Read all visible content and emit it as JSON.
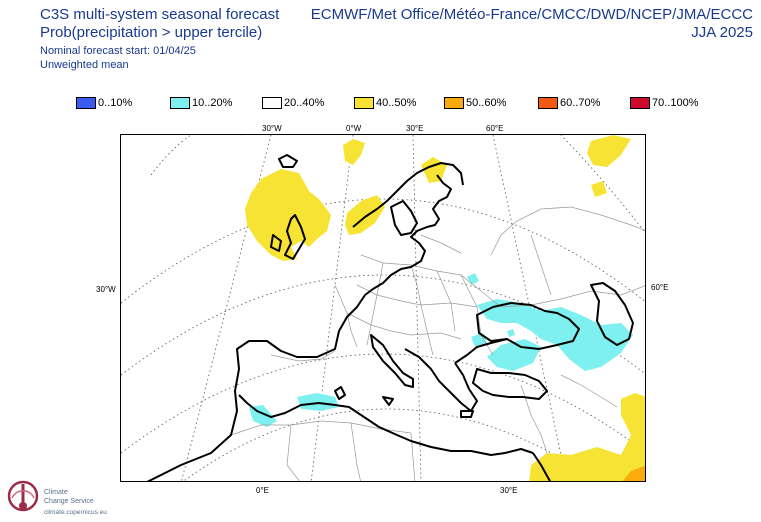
{
  "header": {
    "title": "C3S multi-system seasonal forecast",
    "subtitle": "Prob(precipitation > upper tercile)",
    "start": "Nominal forecast start: 01/04/25",
    "mean": "Unweighted mean",
    "centres": "ECMWF/Met Office/Météo-France/CMCC/DWD/NCEP/JMA/ECCC",
    "season": "JJA 2025"
  },
  "legend": [
    {
      "label": "0..10%",
      "color": "#3c5cf0"
    },
    {
      "label": "10..20%",
      "color": "#7ff0f0"
    },
    {
      "label": "20..40%",
      "color": "#ffffff"
    },
    {
      "label": "40..50%",
      "color": "#f7e333"
    },
    {
      "label": "50..60%",
      "color": "#fbab0e"
    },
    {
      "label": "60..70%",
      "color": "#f25a14"
    },
    {
      "label": "70..100%",
      "color": "#cc0a2e"
    }
  ],
  "axes": {
    "top": [
      "30°W",
      "0°W",
      "30°E",
      "60°E"
    ],
    "left": "30°W",
    "right": "60°E",
    "bottom": [
      "0°E",
      "30°E"
    ]
  },
  "logo": {
    "line1": "Climate",
    "line2": "Change Service",
    "url": "climate.copernicus.eu"
  }
}
